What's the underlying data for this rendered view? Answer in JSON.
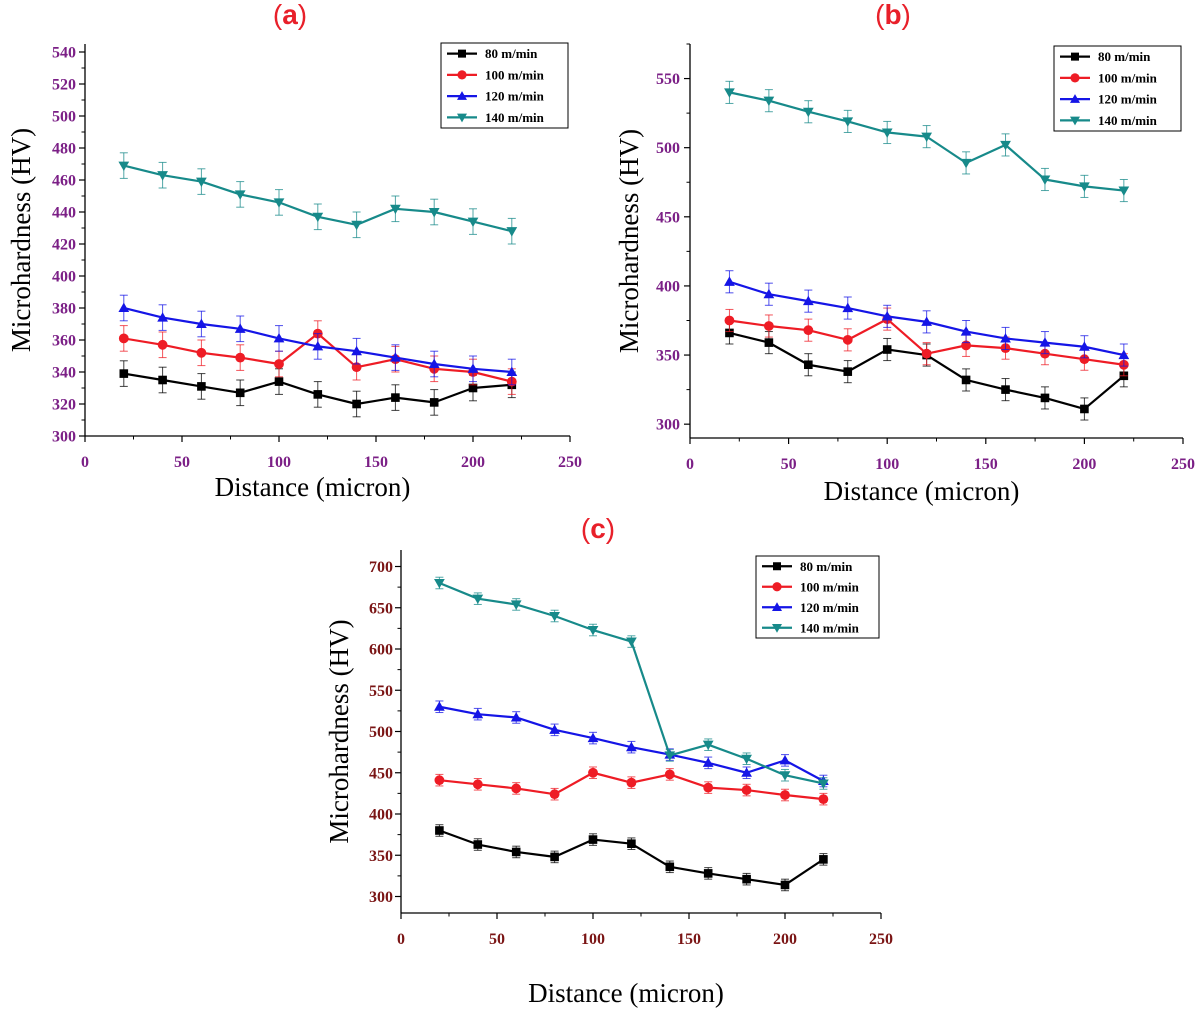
{
  "chart_data": [
    {
      "id": "a",
      "type": "line",
      "panel_label_open": "(",
      "panel_label_letter": "a",
      "panel_label_close": ")",
      "xlabel": "Distance (micron)",
      "ylabel": "Microhardness (HV)",
      "xlim": [
        0,
        250
      ],
      "ylim": [
        300,
        545
      ],
      "xticks": [
        0,
        50,
        100,
        150,
        200,
        250
      ],
      "yticks": [
        300,
        320,
        340,
        360,
        380,
        400,
        420,
        440,
        460,
        480,
        500,
        520,
        540
      ],
      "tick_color": "#7b1f86",
      "legend_position": "top-right",
      "error": 8,
      "x": [
        20,
        40,
        60,
        80,
        100,
        120,
        140,
        160,
        180,
        200,
        220
      ],
      "series": [
        {
          "name": "80 m/min",
          "color": "#000000",
          "marker": "square",
          "values": [
            339,
            335,
            331,
            327,
            334,
            326,
            320,
            324,
            321,
            330,
            332
          ]
        },
        {
          "name": "100 m/min",
          "color": "#ee1c25",
          "marker": "circle",
          "values": [
            361,
            357,
            352,
            349,
            345,
            364,
            343,
            348,
            342,
            340,
            334
          ]
        },
        {
          "name": "120 m/min",
          "color": "#1515e6",
          "marker": "triangle-up",
          "values": [
            380,
            374,
            370,
            367,
            361,
            356,
            353,
            349,
            345,
            342,
            340
          ]
        },
        {
          "name": "140 m/min",
          "color": "#178a8a",
          "marker": "triangle-down",
          "values": [
            469,
            463,
            459,
            451,
            446,
            437,
            432,
            442,
            440,
            434,
            428
          ]
        }
      ]
    },
    {
      "id": "b",
      "type": "line",
      "panel_label_open": "(",
      "panel_label_letter": "b",
      "panel_label_close": ")",
      "xlabel": "Distance (micron)",
      "ylabel": "Microhardness (HV)",
      "xlim": [
        0,
        250
      ],
      "ylim": [
        290,
        575
      ],
      "xticks": [
        0,
        50,
        100,
        150,
        200,
        250
      ],
      "yticks": [
        300,
        350,
        400,
        450,
        500,
        550
      ],
      "tick_color": "#7b1f86",
      "legend_position": "top-right",
      "error": 8,
      "x": [
        20,
        40,
        60,
        80,
        100,
        120,
        140,
        160,
        180,
        200,
        220
      ],
      "series": [
        {
          "name": "80 m/min",
          "color": "#000000",
          "marker": "square",
          "values": [
            366,
            359,
            343,
            338,
            354,
            350,
            332,
            325,
            319,
            311,
            335
          ]
        },
        {
          "name": "100 m/min",
          "color": "#ee1c25",
          "marker": "circle",
          "values": [
            375,
            371,
            368,
            361,
            376,
            351,
            357,
            355,
            351,
            347,
            343
          ]
        },
        {
          "name": "120 m/min",
          "color": "#1515e6",
          "marker": "triangle-up",
          "values": [
            403,
            394,
            389,
            384,
            378,
            374,
            367,
            362,
            359,
            356,
            350
          ]
        },
        {
          "name": "140 m/min",
          "color": "#178a8a",
          "marker": "triangle-down",
          "values": [
            540,
            534,
            526,
            519,
            511,
            508,
            489,
            502,
            477,
            472,
            469
          ]
        }
      ]
    },
    {
      "id": "c",
      "type": "line",
      "panel_label_open": "(",
      "panel_label_letter": "c",
      "panel_label_close": ")",
      "xlabel": "Distance (micron)",
      "ylabel": "Microhardness (HV)",
      "xlim": [
        0,
        250
      ],
      "ylim": [
        280,
        720
      ],
      "xticks": [
        0,
        50,
        100,
        150,
        200,
        250
      ],
      "yticks": [
        300,
        350,
        400,
        450,
        500,
        550,
        600,
        650,
        700
      ],
      "tick_color": "#7a1414",
      "legend_position": "top-right",
      "error": 7,
      "x": [
        20,
        40,
        60,
        80,
        100,
        120,
        140,
        160,
        180,
        200,
        220
      ],
      "series": [
        {
          "name": "80 m/min",
          "color": "#000000",
          "marker": "square",
          "values": [
            380,
            363,
            354,
            348,
            369,
            364,
            336,
            328,
            321,
            314,
            345
          ]
        },
        {
          "name": "100 m/min",
          "color": "#ee1c25",
          "marker": "circle",
          "values": [
            441,
            436,
            431,
            424,
            450,
            438,
            448,
            432,
            429,
            423,
            418
          ]
        },
        {
          "name": "120 m/min",
          "color": "#1515e6",
          "marker": "triangle-up",
          "values": [
            530,
            521,
            517,
            502,
            492,
            481,
            472,
            462,
            450,
            465,
            440
          ]
        },
        {
          "name": "140 m/min",
          "color": "#178a8a",
          "marker": "triangle-down",
          "values": [
            680,
            661,
            654,
            640,
            623,
            609,
            471,
            484,
            467,
            447,
            437
          ]
        }
      ]
    }
  ]
}
